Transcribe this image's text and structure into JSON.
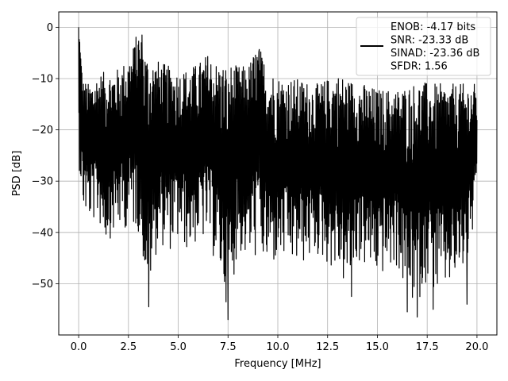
{
  "chart_data": {
    "type": "line",
    "xlabel": "Frequency [MHz]",
    "ylabel": "PSD [dB]",
    "xlim": [
      -1.0,
      21.0
    ],
    "ylim": [
      -60.0,
      3.0
    ],
    "xticks": [
      0.0,
      2.5,
      5.0,
      7.5,
      10.0,
      12.5,
      15.0,
      17.5,
      20.0
    ],
    "xtick_labels": [
      "0.0",
      "2.5",
      "5.0",
      "7.5",
      "10.0",
      "12.5",
      "15.0",
      "17.5",
      "20.0"
    ],
    "yticks": [
      0,
      -10,
      -20,
      -30,
      -40,
      -50
    ],
    "ytick_labels": [
      "0",
      "−10",
      "−20",
      "−30",
      "−40",
      "−50"
    ],
    "grid": true,
    "legend": "top-right",
    "line_color": "#000000",
    "series": [
      {
        "name": "ENOB: -4.17 bits\nSNR: -23.33 dB\nSINAD: -23.36 dB\nSFDR: 1.56",
        "legend_lines": [
          "ENOB: -4.17 bits",
          "SNR: -23.33 dB",
          "SINAD: -23.36 dB",
          "SFDR: 1.56"
        ],
        "x_range": [
          0.0,
          20.0
        ],
        "upper_envelope": [
          [
            0.0,
            -0.5
          ],
          [
            0.05,
            -2
          ],
          [
            0.2,
            -12
          ],
          [
            0.5,
            -13
          ],
          [
            1.0,
            -11
          ],
          [
            1.5,
            -10.5
          ],
          [
            2.0,
            -10
          ],
          [
            2.5,
            -8
          ],
          [
            2.75,
            -5.5
          ],
          [
            3.0,
            -2
          ],
          [
            3.3,
            -6
          ],
          [
            3.6,
            -8
          ],
          [
            4.0,
            -8.5
          ],
          [
            4.5,
            -9.5
          ],
          [
            5.0,
            -10.5
          ],
          [
            5.5,
            -10
          ],
          [
            6.0,
            -9
          ],
          [
            6.5,
            -7
          ],
          [
            7.0,
            -9
          ],
          [
            7.5,
            -9
          ],
          [
            8.0,
            -9.5
          ],
          [
            8.5,
            -9.5
          ],
          [
            9.0,
            -5
          ],
          [
            9.5,
            -10
          ],
          [
            10.0,
            -11.5
          ],
          [
            11.0,
            -12
          ],
          [
            12.0,
            -13
          ],
          [
            13.0,
            -11
          ],
          [
            14.0,
            -12.5
          ],
          [
            15.0,
            -14
          ],
          [
            16.0,
            -14
          ],
          [
            17.0,
            -12.5
          ],
          [
            18.0,
            -13
          ],
          [
            19.0,
            -13
          ],
          [
            20.0,
            -13
          ]
        ],
        "lower_envelope": [
          [
            0.0,
            -28
          ],
          [
            0.2,
            -38
          ],
          [
            0.5,
            -40
          ],
          [
            1.0,
            -40
          ],
          [
            1.3,
            -44
          ],
          [
            2.0,
            -42
          ],
          [
            2.5,
            -41
          ],
          [
            3.0,
            -42
          ],
          [
            3.5,
            -54.5
          ],
          [
            4.0,
            -44
          ],
          [
            4.5,
            -46
          ],
          [
            5.0,
            -44
          ],
          [
            5.5,
            -46
          ],
          [
            6.0,
            -44
          ],
          [
            6.5,
            -44
          ],
          [
            7.0,
            -50
          ],
          [
            7.5,
            -57
          ],
          [
            8.0,
            -46
          ],
          [
            8.5,
            -48
          ],
          [
            9.0,
            -47
          ],
          [
            9.5,
            -50
          ],
          [
            10.0,
            -48
          ],
          [
            11.0,
            -49
          ],
          [
            12.0,
            -47
          ],
          [
            13.0,
            -50
          ],
          [
            13.5,
            -54
          ],
          [
            14.0,
            -48
          ],
          [
            15.0,
            -51
          ],
          [
            16.0,
            -49
          ],
          [
            16.5,
            -56
          ],
          [
            17.0,
            -56.5
          ],
          [
            17.5,
            -51
          ],
          [
            18.0,
            -55
          ],
          [
            19.0,
            -52
          ],
          [
            19.5,
            -49
          ],
          [
            20.0,
            -38
          ]
        ],
        "peaks": [
          [
            0.0,
            0.0
          ],
          [
            0.08,
            -5
          ],
          [
            2.82,
            -4
          ],
          [
            3.18,
            -1.5
          ],
          [
            9.05,
            -4.8
          ],
          [
            13.6,
            -11.5
          ],
          [
            3.52,
            -54.5
          ],
          [
            7.5,
            -57
          ],
          [
            13.7,
            -52.5
          ],
          [
            16.5,
            -55.5
          ],
          [
            17.0,
            -56.5
          ],
          [
            17.8,
            -55
          ],
          [
            19.5,
            -54
          ]
        ]
      }
    ]
  }
}
